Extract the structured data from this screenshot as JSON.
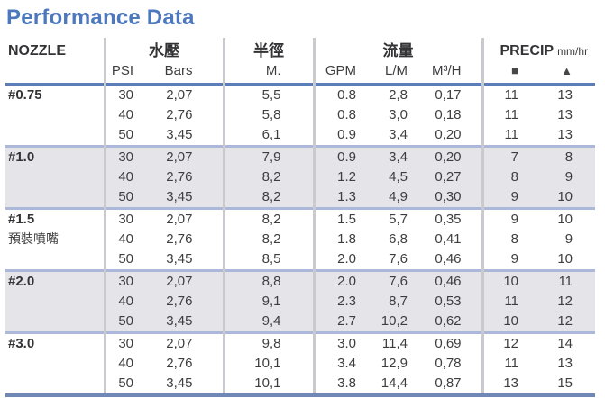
{
  "title": "Performance Data",
  "colors": {
    "title_blue": "#4e78be",
    "header_rule_blue": "#5b7eb9",
    "group_rule_blue": "#abb8da",
    "bottom_rule_blue": "#6f88b5",
    "shaded_row_bg": "#e4e4e9",
    "column_divider_gray": "#c9c9ce",
    "text_gray": "#3e3e40"
  },
  "header": {
    "nozzle": "NOZZLE",
    "pressure_group": "水壓",
    "pressure_subs": [
      "PSI",
      "Bars"
    ],
    "radius_group": "半徑",
    "radius_subs": [
      "M."
    ],
    "flow_group": "流量",
    "flow_subs": [
      "GPM",
      "L/M",
      "M³/H"
    ],
    "precip_group": "PRECIP",
    "precip_unit": "mm/hr",
    "precip_subs": [
      "■",
      "▲"
    ]
  },
  "columns": [
    "PSI",
    "Bars",
    "M.",
    "GPM",
    "L/M",
    "M³/H",
    "precip-square",
    "precip-triangle"
  ],
  "rows": [
    {
      "nozzle": "#0.75",
      "note": "",
      "shaded": false,
      "lines": [
        [
          "30",
          "2,07",
          "5,5",
          "0.8",
          "2,8",
          "0,17",
          "11",
          "13"
        ],
        [
          "40",
          "2,76",
          "5,8",
          "0.8",
          "3,0",
          "0,18",
          "11",
          "13"
        ],
        [
          "50",
          "3,45",
          "6,1",
          "0.9",
          "3,4",
          "0,20",
          "11",
          "13"
        ]
      ]
    },
    {
      "nozzle": "#1.0",
      "note": "",
      "shaded": true,
      "lines": [
        [
          "30",
          "2,07",
          "7,9",
          "0.9",
          "3,4",
          "0,20",
          "7",
          "8"
        ],
        [
          "40",
          "2,76",
          "8,2",
          "1.2",
          "4,5",
          "0,27",
          "8",
          "9"
        ],
        [
          "50",
          "3,45",
          "8,2",
          "1.3",
          "4,9",
          "0,30",
          "9",
          "10"
        ]
      ]
    },
    {
      "nozzle": "#1.5",
      "note": "預裝噴嘴",
      "shaded": false,
      "lines": [
        [
          "30",
          "2,07",
          "8,2",
          "1.5",
          "5,7",
          "0,35",
          "9",
          "10"
        ],
        [
          "40",
          "2,76",
          "8,2",
          "1.8",
          "6,8",
          "0,41",
          "8",
          "9"
        ],
        [
          "50",
          "3,45",
          "8,5",
          "2.0",
          "7,6",
          "0,46",
          "9",
          "10"
        ]
      ]
    },
    {
      "nozzle": "#2.0",
      "note": "",
      "shaded": true,
      "lines": [
        [
          "30",
          "2,07",
          "8,8",
          "2.0",
          "7,6",
          "0,46",
          "10",
          "11"
        ],
        [
          "40",
          "2,76",
          "9,1",
          "2.3",
          "8,7",
          "0,53",
          "11",
          "12"
        ],
        [
          "50",
          "3,45",
          "9,4",
          "2.7",
          "10,2",
          "0,62",
          "10",
          "12"
        ]
      ]
    },
    {
      "nozzle": "#3.0",
      "note": "",
      "shaded": false,
      "lines": [
        [
          "30",
          "2,07",
          "9,8",
          "3.0",
          "11,4",
          "0,69",
          "12",
          "14"
        ],
        [
          "40",
          "2,76",
          "10,1",
          "3.4",
          "12,9",
          "0,78",
          "11",
          "13"
        ],
        [
          "50",
          "3,45",
          "10,1",
          "3.8",
          "14,4",
          "0,87",
          "13",
          "15"
        ]
      ]
    }
  ]
}
